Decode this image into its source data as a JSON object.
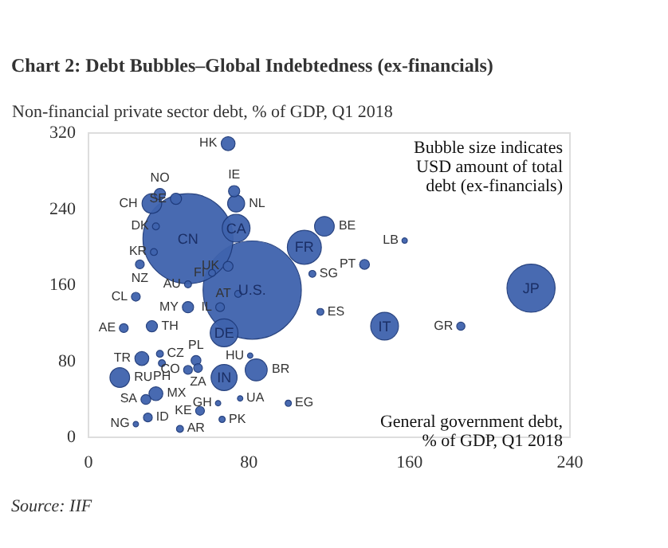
{
  "chart_data": {
    "type": "bubble",
    "title": "Chart 2: Debt Bubbles–Global Indebtedness (ex-financials)",
    "ylabel": "Non-financial private sector debt, % of GDP, Q1 2018",
    "xlabel": "General government debt, % of GDP, Q1 2018",
    "xlim": [
      0,
      240
    ],
    "xticks": [
      0,
      80,
      160,
      240
    ],
    "ylim": [
      0,
      320
    ],
    "yticks": [
      0,
      80,
      160,
      240,
      320
    ],
    "grid": false,
    "series": [
      {
        "color": "#3f63ad",
        "x": [
          70,
          36,
          44,
          32,
          73,
          74,
          34,
          50,
          33,
          74,
          118,
          108,
          138,
          158,
          26,
          70,
          62,
          24,
          50,
          75,
          82,
          112,
          116,
          148,
          221,
          186,
          50,
          66,
          32,
          18,
          68,
          36,
          27,
          37,
          54,
          55,
          50,
          16,
          68,
          84,
          81,
          34,
          29,
          56,
          65,
          76,
          67,
          100,
          24,
          30,
          46
        ],
        "values": [
          308,
          255,
          250,
          245,
          258,
          245,
          221,
          208,
          194,
          219,
          221,
          199,
          181,
          206,
          181,
          179,
          172,
          147,
          160,
          150,
          154,
          171,
          131,
          116,
          156,
          116,
          136,
          136,
          116,
          114,
          109,
          87,
          82,
          77,
          80,
          72,
          70,
          62,
          62,
          70,
          85,
          45,
          39,
          27,
          35,
          40,
          18,
          35,
          13,
          20,
          8
        ],
        "sizes": [
          0.02,
          0.013,
          0.013,
          0.04,
          0.013,
          0.03,
          0.005,
          0.84,
          0.005,
          0.08,
          0.04,
          0.12,
          0.01,
          0.003,
          0.008,
          0.01,
          0.005,
          0.008,
          0.005,
          0.005,
          1,
          0.005,
          0.005,
          0.08,
          0.24,
          0.007,
          0.013,
          0.008,
          0.013,
          0.008,
          0.08,
          0.005,
          0.02,
          0.005,
          0.01,
          0.008,
          0.008,
          0.04,
          0.07,
          0.05,
          0.003,
          0.02,
          0.01,
          0.008,
          0.003,
          0.003,
          0.004,
          0.004,
          0.003,
          0.008,
          0.005
        ]
      }
    ],
    "annotations": [
      {
        "text": "HK",
        "x": 70,
        "y": 308
      },
      {
        "text": "NO",
        "x": 36,
        "y": 255
      },
      {
        "text": "SE",
        "x": 44,
        "y": 250
      },
      {
        "text": "CH",
        "x": 32,
        "y": 245
      },
      {
        "text": "IE",
        "x": 73,
        "y": 258
      },
      {
        "text": "NL",
        "x": 74,
        "y": 245
      },
      {
        "text": "DK",
        "x": 34,
        "y": 221
      },
      {
        "text": "CN",
        "x": 50,
        "y": 208
      },
      {
        "text": "KR",
        "x": 33,
        "y": 194
      },
      {
        "text": "CA",
        "x": 74,
        "y": 219
      },
      {
        "text": "BE",
        "x": 118,
        "y": 221
      },
      {
        "text": "FR",
        "x": 108,
        "y": 199
      },
      {
        "text": "PT",
        "x": 138,
        "y": 181
      },
      {
        "text": "LB",
        "x": 158,
        "y": 206
      },
      {
        "text": "NZ",
        "x": 26,
        "y": 181
      },
      {
        "text": "UK",
        "x": 70,
        "y": 179
      },
      {
        "text": "FI",
        "x": 62,
        "y": 172
      },
      {
        "text": "CL",
        "x": 24,
        "y": 147
      },
      {
        "text": "AU",
        "x": 50,
        "y": 160
      },
      {
        "text": "AT",
        "x": 75,
        "y": 150
      },
      {
        "text": "U.S.",
        "x": 82,
        "y": 154
      },
      {
        "text": "SG",
        "x": 112,
        "y": 171
      },
      {
        "text": "ES",
        "x": 116,
        "y": 131
      },
      {
        "text": "IT",
        "x": 148,
        "y": 116
      },
      {
        "text": "JP",
        "x": 221,
        "y": 156
      },
      {
        "text": "GR",
        "x": 186,
        "y": 116
      },
      {
        "text": "MY",
        "x": 50,
        "y": 136
      },
      {
        "text": "IL",
        "x": 66,
        "y": 136
      },
      {
        "text": "TH",
        "x": 32,
        "y": 116
      },
      {
        "text": "AE",
        "x": 18,
        "y": 114
      },
      {
        "text": "DE",
        "x": 68,
        "y": 109
      },
      {
        "text": "CZ",
        "x": 36,
        "y": 87
      },
      {
        "text": "TR",
        "x": 27,
        "y": 82
      },
      {
        "text": "PH",
        "x": 37,
        "y": 77
      },
      {
        "text": "PL",
        "x": 54,
        "y": 80
      },
      {
        "text": "ZA",
        "x": 55,
        "y": 72
      },
      {
        "text": "CO",
        "x": 50,
        "y": 70
      },
      {
        "text": "RU",
        "x": 16,
        "y": 62
      },
      {
        "text": "IN",
        "x": 68,
        "y": 62
      },
      {
        "text": "BR",
        "x": 84,
        "y": 70
      },
      {
        "text": "HU",
        "x": 81,
        "y": 85
      },
      {
        "text": "MX",
        "x": 34,
        "y": 45
      },
      {
        "text": "SA",
        "x": 29,
        "y": 39
      },
      {
        "text": "KE",
        "x": 56,
        "y": 27
      },
      {
        "text": "GH",
        "x": 65,
        "y": 35
      },
      {
        "text": "UA",
        "x": 76,
        "y": 40
      },
      {
        "text": "PK",
        "x": 67,
        "y": 18
      },
      {
        "text": "EG",
        "x": 100,
        "y": 35
      },
      {
        "text": "NG",
        "x": 24,
        "y": 13
      },
      {
        "text": "ID",
        "x": 30,
        "y": 20
      },
      {
        "text": "AR",
        "x": 46,
        "y": 8
      },
      "Bubble size indicates USD amount of total debt (ex-financials)",
      "Source: IIF"
    ]
  }
}
